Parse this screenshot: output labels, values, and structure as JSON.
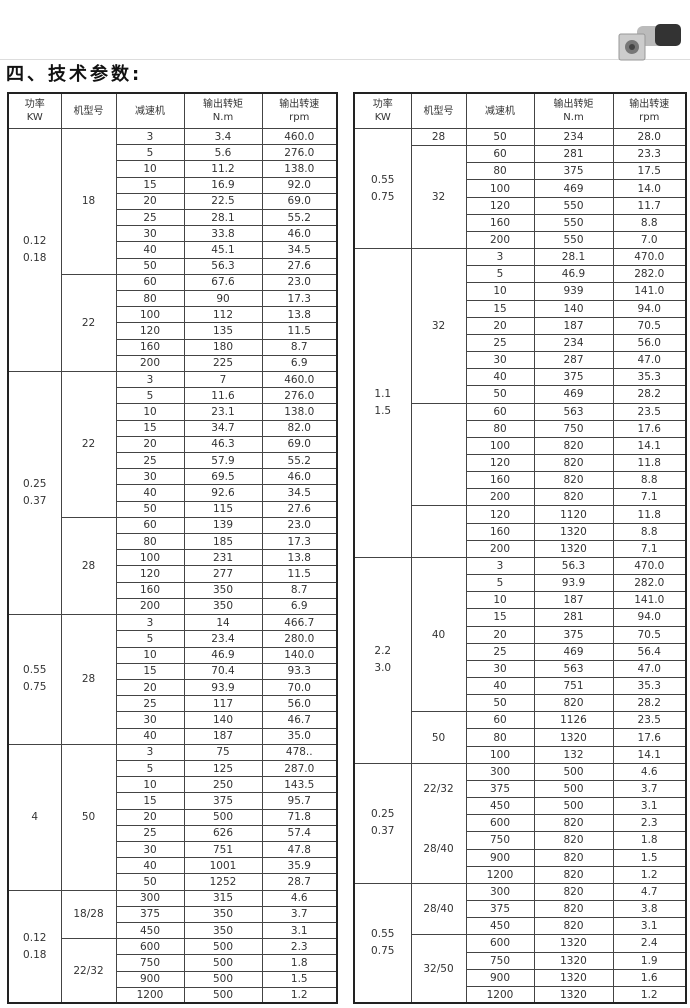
{
  "heading": "四、技术参数:",
  "product_image": "worm-gear-motor-photo",
  "columns": [
    {
      "line1": "功率",
      "line2": "KW"
    },
    {
      "line1": "机型号",
      "line2": ""
    },
    {
      "line1": "减速机",
      "line2": ""
    },
    {
      "line1": "输出转矩",
      "line2": "N.m"
    },
    {
      "line1": "输出转速",
      "line2": "rpm"
    }
  ],
  "tables": [
    {
      "groups": [
        {
          "power": [
            "0.12",
            "0.18"
          ],
          "models": [
            {
              "label": "18",
              "rows": [
                [
                  "3",
                  "3.4",
                  "460.0"
                ],
                [
                  "5",
                  "5.6",
                  "276.0"
                ],
                [
                  "10",
                  "11.2",
                  "138.0"
                ],
                [
                  "15",
                  "16.9",
                  "92.0"
                ],
                [
                  "20",
                  "22.5",
                  "69.0"
                ],
                [
                  "25",
                  "28.1",
                  "55.2"
                ],
                [
                  "30",
                  "33.8",
                  "46.0"
                ],
                [
                  "40",
                  "45.1",
                  "34.5"
                ],
                [
                  "50",
                  "56.3",
                  "27.6"
                ]
              ]
            },
            {
              "label": "22",
              "rows": [
                [
                  "60",
                  "67.6",
                  "23.0"
                ],
                [
                  "80",
                  "90",
                  "17.3"
                ],
                [
                  "100",
                  "112",
                  "13.8"
                ],
                [
                  "120",
                  "135",
                  "11.5"
                ],
                [
                  "160",
                  "180",
                  "8.7"
                ],
                [
                  "200",
                  "225",
                  "6.9"
                ]
              ]
            }
          ]
        },
        {
          "power": [
            "0.25",
            "0.37"
          ],
          "models": [
            {
              "label": "22",
              "rows": [
                [
                  "3",
                  "7",
                  "460.0"
                ],
                [
                  "5",
                  "11.6",
                  "276.0"
                ],
                [
                  "10",
                  "23.1",
                  "138.0"
                ],
                [
                  "15",
                  "34.7",
                  "82.0"
                ],
                [
                  "20",
                  "46.3",
                  "69.0"
                ],
                [
                  "25",
                  "57.9",
                  "55.2"
                ],
                [
                  "30",
                  "69.5",
                  "46.0"
                ],
                [
                  "40",
                  "92.6",
                  "34.5"
                ],
                [
                  "50",
                  "115",
                  "27.6"
                ]
              ]
            },
            {
              "label": "28",
              "rows": [
                [
                  "60",
                  "139",
                  "23.0"
                ],
                [
                  "80",
                  "185",
                  "17.3"
                ],
                [
                  "100",
                  "231",
                  "13.8"
                ],
                [
                  "120",
                  "277",
                  "11.5"
                ],
                [
                  "160",
                  "350",
                  "8.7"
                ],
                [
                  "200",
                  "350",
                  "6.9"
                ]
              ]
            }
          ]
        },
        {
          "power": [
            "0.55",
            "0.75"
          ],
          "models": [
            {
              "label": "28",
              "rows": [
                [
                  "3",
                  "14",
                  "466.7"
                ],
                [
                  "5",
                  "23.4",
                  "280.0"
                ],
                [
                  "10",
                  "46.9",
                  "140.0"
                ],
                [
                  "15",
                  "70.4",
                  "93.3"
                ],
                [
                  "20",
                  "93.9",
                  "70.0"
                ],
                [
                  "25",
                  "117",
                  "56.0"
                ],
                [
                  "30",
                  "140",
                  "46.7"
                ],
                [
                  "40",
                  "187",
                  "35.0"
                ]
              ]
            }
          ]
        },
        {
          "power": [
            "4"
          ],
          "models": [
            {
              "label": "50",
              "rows": [
                [
                  "3",
                  "75",
                  "478.."
                ],
                [
                  "5",
                  "125",
                  "287.0"
                ],
                [
                  "10",
                  "250",
                  "143.5"
                ],
                [
                  "15",
                  "375",
                  "95.7"
                ],
                [
                  "20",
                  "500",
                  "71.8"
                ],
                [
                  "25",
                  "626",
                  "57.4"
                ],
                [
                  "30",
                  "751",
                  "47.8"
                ],
                [
                  "40",
                  "1001",
                  "35.9"
                ],
                [
                  "50",
                  "1252",
                  "28.7"
                ]
              ]
            }
          ]
        },
        {
          "power": [
            "0.12",
            "0.18"
          ],
          "models": [
            {
              "label": "18/28",
              "rows": [
                [
                  "300",
                  "315",
                  "4.6"
                ],
                [
                  "375",
                  "350",
                  "3.7"
                ],
                [
                  "450",
                  "350",
                  "3.1"
                ]
              ]
            },
            {
              "label": "22/32",
              "rows": [
                [
                  "600",
                  "500",
                  "2.3"
                ],
                [
                  "750",
                  "500",
                  "1.8"
                ],
                [
                  "900",
                  "500",
                  "1.5"
                ],
                [
                  "1200",
                  "500",
                  "1.2"
                ]
              ]
            }
          ]
        }
      ]
    },
    {
      "groups": [
        {
          "power": [
            "0.55",
            "0.75"
          ],
          "models": [
            {
              "label": "28",
              "rows": [
                [
                  "50",
                  "234",
                  "28.0"
                ]
              ]
            },
            {
              "label": "32",
              "rows": [
                [
                  "60",
                  "281",
                  "23.3"
                ],
                [
                  "80",
                  "375",
                  "17.5"
                ],
                [
                  "100",
                  "469",
                  "14.0"
                ],
                [
                  "120",
                  "550",
                  "11.7"
                ],
                [
                  "160",
                  "550",
                  "8.8"
                ],
                [
                  "200",
                  "550",
                  "7.0"
                ]
              ]
            }
          ]
        },
        {
          "power": [
            "1.1",
            "1.5"
          ],
          "models": [
            {
              "label": "32",
              "rows": [
                [
                  "3",
                  "28.1",
                  "470.0"
                ],
                [
                  "5",
                  "46.9",
                  "282.0"
                ],
                [
                  "10",
                  "939",
                  "141.0"
                ],
                [
                  "15",
                  "140",
                  "94.0"
                ],
                [
                  "20",
                  "187",
                  "70.5"
                ],
                [
                  "25",
                  "234",
                  "56.0"
                ],
                [
                  "30",
                  "287",
                  "47.0"
                ],
                [
                  "40",
                  "375",
                  "35.3"
                ],
                [
                  "50",
                  "469",
                  "28.2"
                ]
              ]
            },
            {
              "label": "",
              "rows": [
                [
                  "60",
                  "563",
                  "23.5"
                ],
                [
                  "80",
                  "750",
                  "17.6"
                ],
                [
                  "100",
                  "820",
                  "14.1"
                ],
                [
                  "120",
                  "820",
                  "11.8"
                ],
                [
                  "160",
                  "820",
                  "8.8"
                ],
                [
                  "200",
                  "820",
                  "7.1"
                ]
              ]
            },
            {
              "label": "",
              "rows": [
                [
                  "120",
                  "1120",
                  "11.8"
                ],
                [
                  "160",
                  "1320",
                  "8.8"
                ],
                [
                  "200",
                  "1320",
                  "7.1"
                ]
              ]
            }
          ]
        },
        {
          "power": [
            "2.2",
            "3.0"
          ],
          "models": [
            {
              "label": "40",
              "rows": [
                [
                  "3",
                  "56.3",
                  "470.0"
                ],
                [
                  "5",
                  "93.9",
                  "282.0"
                ],
                [
                  "10",
                  "187",
                  "141.0"
                ],
                [
                  "15",
                  "281",
                  "94.0"
                ],
                [
                  "20",
                  "375",
                  "70.5"
                ],
                [
                  "25",
                  "469",
                  "56.4"
                ],
                [
                  "30",
                  "563",
                  "47.0"
                ],
                [
                  "40",
                  "751",
                  "35.3"
                ],
                [
                  "50",
                  "820",
                  "28.2"
                ]
              ]
            },
            {
              "label": "50",
              "rows": [
                [
                  "60",
                  "1126",
                  "23.5"
                ],
                [
                  "80",
                  "1320",
                  "17.6"
                ],
                [
                  "100",
                  "132",
                  "14.1"
                ]
              ]
            }
          ]
        },
        {
          "power": [
            "0.25",
            "0.37"
          ],
          "models": [
            {
              "label": "22/32",
              "no_divider_after": true,
              "rows": [
                [
                  "300",
                  "500",
                  "4.6"
                ],
                [
                  "375",
                  "500",
                  "3.7"
                ],
                [
                  "450",
                  "500",
                  "3.1"
                ]
              ]
            },
            {
              "label": "28/40",
              "rows": [
                [
                  "600",
                  "820",
                  "2.3"
                ],
                [
                  "750",
                  "820",
                  "1.8"
                ],
                [
                  "900",
                  "820",
                  "1.5"
                ],
                [
                  "1200",
                  "820",
                  "1.2"
                ]
              ]
            }
          ]
        },
        {
          "power": [
            "0.55",
            "0.75"
          ],
          "models": [
            {
              "label": "28/40",
              "rows": [
                [
                  "300",
                  "820",
                  "4.7"
                ],
                [
                  "375",
                  "820",
                  "3.8"
                ],
                [
                  "450",
                  "820",
                  "3.1"
                ]
              ]
            },
            {
              "label": "32/50",
              "rows": [
                [
                  "600",
                  "1320",
                  "2.4"
                ],
                [
                  "750",
                  "1320",
                  "1.9"
                ],
                [
                  "900",
                  "1320",
                  "1.6"
                ],
                [
                  "1200",
                  "1320",
                  "1.2"
                ]
              ]
            }
          ]
        }
      ]
    }
  ]
}
